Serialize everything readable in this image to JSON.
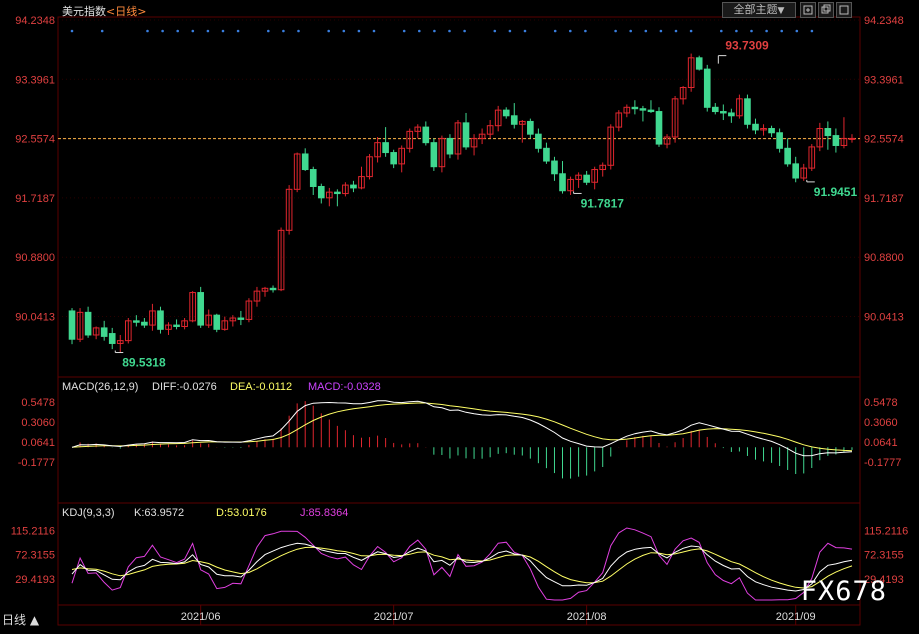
{
  "header": {
    "title": "美元指数",
    "period": "<日线>",
    "theme_button": "全部主题",
    "theme_arrow": "▼"
  },
  "bottom_tab": "日线 ▲",
  "watermark": "FX678",
  "colors": {
    "up": "#e0262e",
    "down": "#40d890",
    "bg": "#000000",
    "grid": "#2a0000",
    "price_label": "#e04040",
    "dif": "#ffffff",
    "dea": "#ffff66",
    "j": "#e040e0",
    "macd_label": "#cc44ff"
  },
  "chart_data": [
    {
      "type": "candlestick",
      "title": "美元指数<日线>",
      "yticks": [
        94.2348,
        93.3961,
        92.5574,
        91.7187,
        90.88,
        90.0413
      ],
      "ylim": [
        89.3,
        94.35
      ],
      "current_price_line": 92.5574,
      "annotations": [
        {
          "label": "93.7309",
          "value": 93.7309,
          "index": 81,
          "position": "above"
        },
        {
          "label": "91.7817",
          "value": 91.7817,
          "index": 63,
          "position": "below"
        },
        {
          "label": "91.9451",
          "value": 91.9451,
          "index": 92,
          "position": "below"
        },
        {
          "label": "89.5318",
          "value": 89.5318,
          "index": 6,
          "position": "below"
        }
      ],
      "x_labels": [
        {
          "label": "2021/06",
          "index": 16
        },
        {
          "label": "2021/07",
          "index": 40
        },
        {
          "label": "2021/08",
          "index": 64
        },
        {
          "label": "2021/09",
          "index": 90
        }
      ],
      "candles": [
        [
          90.12,
          90.16,
          89.65,
          89.72
        ],
        [
          89.72,
          90.16,
          89.68,
          90.1
        ],
        [
          90.1,
          90.18,
          89.74,
          89.78
        ],
        [
          89.78,
          89.9,
          89.72,
          89.88
        ],
        [
          89.88,
          89.98,
          89.7,
          89.76
        ],
        [
          89.8,
          89.88,
          89.58,
          89.66
        ],
        [
          89.66,
          89.78,
          89.53,
          89.7
        ],
        [
          89.7,
          90.02,
          89.66,
          89.98
        ],
        [
          89.98,
          90.06,
          89.9,
          89.96
        ],
        [
          89.96,
          90.02,
          89.88,
          89.92
        ],
        [
          89.92,
          90.22,
          89.84,
          90.12
        ],
        [
          90.12,
          90.18,
          89.8,
          89.86
        ],
        [
          89.86,
          89.96,
          89.78,
          89.92
        ],
        [
          89.92,
          90.0,
          89.86,
          89.9
        ],
        [
          89.9,
          90.02,
          89.86,
          89.98
        ],
        [
          89.98,
          90.4,
          89.96,
          90.38
        ],
        [
          90.38,
          90.46,
          89.88,
          89.92
        ],
        [
          89.92,
          90.14,
          89.88,
          90.06
        ],
        [
          90.06,
          90.08,
          89.82,
          89.86
        ],
        [
          89.86,
          90.04,
          89.84,
          89.98
        ],
        [
          89.98,
          90.06,
          89.9,
          90.02
        ],
        [
          90.02,
          90.12,
          89.92,
          90.0
        ],
        [
          90.0,
          90.3,
          89.96,
          90.26
        ],
        [
          90.26,
          90.46,
          90.18,
          90.4
        ],
        [
          90.4,
          90.46,
          90.32,
          90.44
        ],
        [
          90.44,
          90.48,
          90.38,
          90.42
        ],
        [
          90.42,
          91.3,
          90.4,
          91.26
        ],
        [
          91.26,
          91.9,
          91.2,
          91.84
        ],
        [
          91.84,
          92.36,
          91.8,
          92.34
        ],
        [
          92.34,
          92.42,
          92.1,
          92.12
        ],
        [
          92.12,
          92.16,
          91.76,
          91.88
        ],
        [
          91.88,
          91.92,
          91.64,
          91.72
        ],
        [
          91.72,
          91.86,
          91.6,
          91.8
        ],
        [
          91.8,
          91.84,
          91.6,
          91.78
        ],
        [
          91.78,
          91.94,
          91.74,
          91.9
        ],
        [
          91.9,
          91.96,
          91.8,
          91.86
        ],
        [
          91.86,
          92.16,
          91.84,
          92.02
        ],
        [
          92.02,
          92.34,
          91.98,
          92.3
        ],
        [
          92.3,
          92.58,
          92.22,
          92.5
        ],
        [
          92.5,
          92.72,
          92.3,
          92.36
        ],
        [
          92.36,
          92.4,
          92.14,
          92.2
        ],
        [
          92.2,
          92.46,
          92.08,
          92.42
        ],
        [
          92.42,
          92.7,
          92.36,
          92.66
        ],
        [
          92.66,
          92.76,
          92.56,
          92.72
        ],
        [
          92.72,
          92.8,
          92.46,
          92.5
        ],
        [
          92.5,
          92.56,
          92.1,
          92.16
        ],
        [
          92.16,
          92.6,
          92.08,
          92.56
        ],
        [
          92.56,
          92.62,
          92.28,
          92.34
        ],
        [
          92.34,
          92.82,
          92.26,
          92.78
        ],
        [
          92.78,
          92.92,
          92.4,
          92.44
        ],
        [
          92.44,
          92.62,
          92.32,
          92.56
        ],
        [
          92.56,
          92.7,
          92.48,
          92.62
        ],
        [
          92.62,
          92.82,
          92.56,
          92.74
        ],
        [
          92.74,
          93.02,
          92.66,
          92.96
        ],
        [
          92.96,
          93.0,
          92.84,
          92.88
        ],
        [
          92.88,
          93.06,
          92.7,
          92.76
        ],
        [
          92.76,
          92.82,
          92.5,
          92.8
        ],
        [
          92.8,
          92.84,
          92.56,
          92.62
        ],
        [
          92.62,
          92.7,
          92.36,
          92.42
        ],
        [
          92.42,
          92.5,
          92.2,
          92.24
        ],
        [
          92.24,
          92.3,
          91.96,
          92.06
        ],
        [
          92.06,
          92.24,
          91.78,
          91.82
        ],
        [
          91.82,
          92.02,
          91.76,
          91.98
        ],
        [
          91.98,
          92.08,
          91.86,
          92.04
        ],
        [
          92.04,
          92.1,
          91.9,
          91.94
        ],
        [
          91.94,
          92.16,
          91.84,
          92.12
        ],
        [
          92.12,
          92.22,
          92.02,
          92.18
        ],
        [
          92.18,
          92.76,
          92.12,
          92.72
        ],
        [
          92.72,
          92.96,
          92.66,
          92.92
        ],
        [
          92.92,
          93.04,
          92.86,
          93.0
        ],
        [
          93.0,
          93.1,
          92.9,
          92.98
        ],
        [
          92.98,
          93.02,
          92.8,
          92.96
        ],
        [
          92.96,
          93.1,
          92.92,
          92.94
        ],
        [
          92.94,
          93.0,
          92.44,
          92.48
        ],
        [
          92.48,
          92.62,
          92.42,
          92.58
        ],
        [
          92.58,
          93.16,
          92.5,
          93.12
        ],
        [
          93.12,
          93.3,
          93.04,
          93.28
        ],
        [
          93.28,
          93.76,
          93.22,
          93.7
        ],
        [
          93.7,
          93.73,
          93.52,
          93.54
        ],
        [
          93.54,
          93.6,
          92.94,
          93.0
        ],
        [
          93.0,
          93.06,
          92.9,
          92.94
        ],
        [
          92.94,
          93.04,
          92.82,
          92.92
        ],
        [
          92.92,
          92.98,
          92.78,
          92.88
        ],
        [
          92.88,
          93.18,
          92.84,
          93.12
        ],
        [
          93.12,
          93.18,
          92.7,
          92.76
        ],
        [
          92.76,
          92.84,
          92.62,
          92.68
        ],
        [
          92.68,
          92.76,
          92.6,
          92.7
        ],
        [
          92.7,
          92.74,
          92.58,
          92.64
        ],
        [
          92.64,
          92.7,
          92.36,
          92.42
        ],
        [
          92.42,
          92.56,
          92.16,
          92.2
        ],
        [
          92.2,
          92.3,
          91.94,
          92.0
        ],
        [
          92.0,
          92.2,
          91.96,
          92.14
        ],
        [
          92.14,
          92.48,
          92.1,
          92.44
        ],
        [
          92.44,
          92.78,
          92.38,
          92.7
        ],
        [
          92.7,
          92.8,
          92.4,
          92.6
        ],
        [
          92.6,
          92.7,
          92.36,
          92.46
        ],
        [
          92.46,
          92.86,
          92.42,
          92.56
        ],
        [
          92.56,
          92.62,
          92.5,
          92.56
        ]
      ]
    },
    {
      "type": "histogram+line",
      "title": "MACD(26,12,9)",
      "legend": [
        {
          "text": "MACD(26,12,9)",
          "color": "#e0e0e0"
        },
        {
          "text": "DIFF:-0.0276",
          "color": "#e0e0e0"
        },
        {
          "text": "DEA:-0.0112",
          "color": "#ffff66"
        },
        {
          "text": "MACD:-0.0328",
          "color": "#cc44ff"
        }
      ],
      "yticks": [
        0.5478,
        0.306,
        0.0641,
        -0.1777
      ],
      "ylim": [
        -0.42,
        0.62
      ]
    },
    {
      "type": "line",
      "title": "KDJ(9,3,3)",
      "legend": [
        {
          "text": "KDJ(9,3,3)",
          "color": "#e0e0e0"
        },
        {
          "text": "K:63.9572",
          "color": "#e0e0e0"
        },
        {
          "text": "D:53.0176",
          "color": "#ffff66"
        },
        {
          "text": "J:85.8364",
          "color": "#e040e0"
        }
      ],
      "yticks": [
        115.2116,
        72.3155,
        29.4193
      ],
      "ylim": [
        -8,
        130
      ]
    }
  ]
}
